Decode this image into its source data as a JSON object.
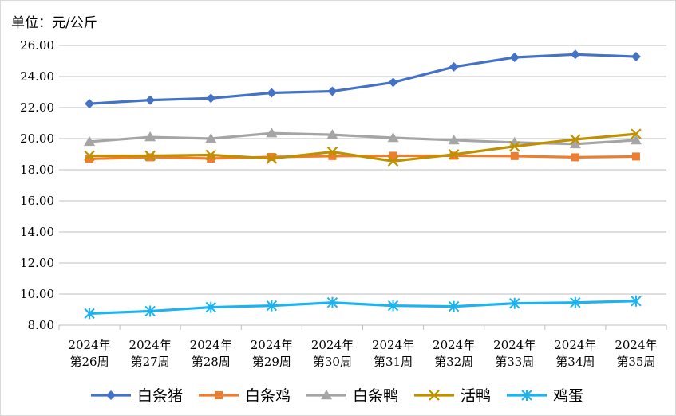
{
  "chart_data": {
    "type": "line",
    "unit_label": "单位：元/公斤",
    "categories": [
      [
        "2024年",
        "第26周"
      ],
      [
        "2024年",
        "第27周"
      ],
      [
        "2024年",
        "第28周"
      ],
      [
        "2024年",
        "第29周"
      ],
      [
        "2024年",
        "第30周"
      ],
      [
        "2024年",
        "第31周"
      ],
      [
        "2024年",
        "第32周"
      ],
      [
        "2024年",
        "第33周"
      ],
      [
        "2024年",
        "第34周"
      ],
      [
        "2024年",
        "第35周"
      ]
    ],
    "ylim": [
      8,
      26
    ],
    "yticks": [
      "8.00",
      "10.00",
      "12.00",
      "14.00",
      "16.00",
      "18.00",
      "20.00",
      "22.00",
      "24.00",
      "26.00"
    ],
    "grid": "horizontal",
    "legend_position": "bottom",
    "series": [
      {
        "name": "白条猪",
        "color": "#4472C4",
        "marker": "diamond",
        "values": [
          22.25,
          22.48,
          22.6,
          22.95,
          23.05,
          23.62,
          24.62,
          25.23,
          25.42,
          25.28
        ]
      },
      {
        "name": "白条鸡",
        "color": "#ED7D31",
        "marker": "square",
        "values": [
          18.7,
          18.8,
          18.72,
          18.82,
          18.88,
          18.9,
          18.9,
          18.88,
          18.8,
          18.85
        ]
      },
      {
        "name": "白条鸭",
        "color": "#A5A5A5",
        "marker": "triangle",
        "values": [
          19.8,
          20.1,
          20.0,
          20.35,
          20.25,
          20.05,
          19.9,
          19.75,
          19.65,
          19.9
        ]
      },
      {
        "name": "活鸭",
        "color": "#BF9000",
        "marker": "x",
        "values": [
          18.9,
          18.9,
          18.95,
          18.72,
          19.15,
          18.55,
          18.98,
          19.5,
          19.95,
          20.3
        ]
      },
      {
        "name": "鸡蛋",
        "color": "#1DB2F0",
        "marker": "star",
        "values": [
          8.75,
          8.9,
          9.15,
          9.25,
          9.45,
          9.25,
          9.2,
          9.4,
          9.45,
          9.55
        ]
      }
    ]
  }
}
